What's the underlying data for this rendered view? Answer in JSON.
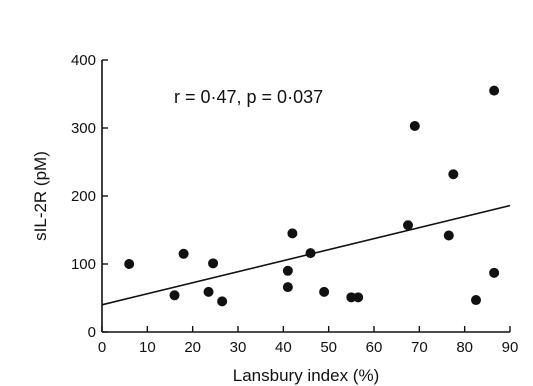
{
  "chart_data": {
    "type": "scatter",
    "xlabel": "Lansbury index (%)",
    "ylabel": "sIL-2R (pM)",
    "annotation": "r = 0·47, p = 0·037",
    "xlim": [
      0,
      90
    ],
    "ylim": [
      0,
      400
    ],
    "xticks": [
      "0",
      "10",
      "20",
      "30",
      "40",
      "50",
      "60",
      "70",
      "80",
      "90"
    ],
    "yticks": [
      "0",
      "100",
      "200",
      "300",
      "400"
    ],
    "grid": false,
    "legend": "none",
    "points": [
      {
        "x": 6,
        "y": 100
      },
      {
        "x": 16,
        "y": 54
      },
      {
        "x": 18,
        "y": 115
      },
      {
        "x": 23.5,
        "y": 59
      },
      {
        "x": 24.5,
        "y": 101
      },
      {
        "x": 26.5,
        "y": 45
      },
      {
        "x": 41,
        "y": 90
      },
      {
        "x": 41,
        "y": 66
      },
      {
        "x": 42,
        "y": 145
      },
      {
        "x": 46,
        "y": 116
      },
      {
        "x": 49,
        "y": 59
      },
      {
        "x": 55,
        "y": 51
      },
      {
        "x": 56.5,
        "y": 51
      },
      {
        "x": 67.5,
        "y": 157
      },
      {
        "x": 69,
        "y": 303
      },
      {
        "x": 76.5,
        "y": 142
      },
      {
        "x": 77.5,
        "y": 232
      },
      {
        "x": 82.5,
        "y": 47
      },
      {
        "x": 86.5,
        "y": 355
      },
      {
        "x": 86.5,
        "y": 87
      }
    ],
    "fit_line": {
      "x": [
        0,
        90
      ],
      "y": [
        40,
        186
      ]
    }
  }
}
